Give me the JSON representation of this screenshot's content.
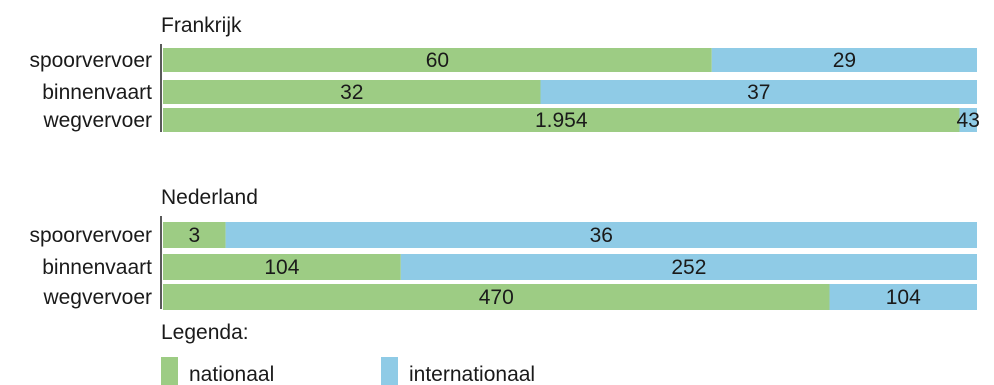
{
  "chart_data": [
    {
      "type": "bar",
      "stacked": "percent",
      "orientation": "horizontal",
      "title": "Frankrijk",
      "categories": [
        "spoorvervoer",
        "binnenvaart",
        "wegvervoer"
      ],
      "series": [
        {
          "name": "nationaal",
          "values": [
            60,
            32,
            1954
          ],
          "labels": [
            "60",
            "32",
            "1.954"
          ],
          "color": "#9dcc84"
        },
        {
          "name": "internationaal",
          "values": [
            29,
            37,
            43
          ],
          "labels": [
            "29",
            "37",
            "43"
          ],
          "color": "#8fcbe6"
        }
      ]
    },
    {
      "type": "bar",
      "stacked": "percent",
      "orientation": "horizontal",
      "title": "Nederland",
      "categories": [
        "spoorvervoer",
        "binnenvaart",
        "wegvervoer"
      ],
      "series": [
        {
          "name": "nationaal",
          "values": [
            3,
            104,
            470
          ],
          "labels": [
            "3",
            "104",
            "470"
          ],
          "color": "#9dcc84"
        },
        {
          "name": "internationaal",
          "values": [
            36,
            252,
            104
          ],
          "labels": [
            "36",
            "252",
            "104"
          ],
          "color": "#8fcbe6"
        }
      ]
    }
  ],
  "legend": {
    "title": "Legenda:",
    "items": [
      {
        "name": "nationaal",
        "color": "#9dcc84"
      },
      {
        "name": "internationaal",
        "color": "#8fcbe6"
      }
    ]
  }
}
